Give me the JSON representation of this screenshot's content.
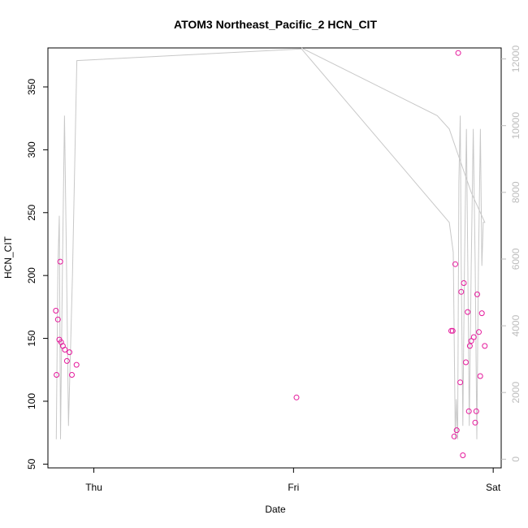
{
  "chart_data": {
    "type": "scatter",
    "title": "ATOM3 Northeast_Pacific_2 HCN_CIT",
    "xlabel": "Date",
    "ylabel": "HCN_CIT",
    "x_tick_labels": [
      "Thu",
      "Fri",
      "Sat"
    ],
    "x_ticks_days": [
      1.0,
      2.0,
      3.0
    ],
    "xlim_days": [
      0.77,
      3.04
    ],
    "ylim": [
      47,
      381
    ],
    "y_ticks": [
      50,
      100,
      150,
      200,
      250,
      300,
      350
    ],
    "y2lim": [
      -260,
      12330
    ],
    "y2_ticks": [
      0,
      2000,
      4000,
      6000,
      8000,
      10000,
      12000
    ],
    "grid": false,
    "colors": {
      "points": "#e5179b",
      "altitude_line": "#c8c8c8",
      "right_axis": "#bdbdbd"
    },
    "series": [
      {
        "marker": "open-circle",
        "axis": "left",
        "points": [
          {
            "x": 0.81,
            "y": 172
          },
          {
            "x": 0.813,
            "y": 121
          },
          {
            "x": 0.82,
            "y": 165
          },
          {
            "x": 0.827,
            "y": 149
          },
          {
            "x": 0.832,
            "y": 211
          },
          {
            "x": 0.836,
            "y": 147
          },
          {
            "x": 0.845,
            "y": 144
          },
          {
            "x": 0.855,
            "y": 141
          },
          {
            "x": 0.865,
            "y": 132
          },
          {
            "x": 0.878,
            "y": 139
          },
          {
            "x": 0.89,
            "y": 121
          },
          {
            "x": 0.913,
            "y": 129
          },
          {
            "x": 2.015,
            "y": 103
          },
          {
            "x": 2.79,
            "y": 156
          },
          {
            "x": 2.797,
            "y": 156
          },
          {
            "x": 2.805,
            "y": 72
          },
          {
            "x": 2.81,
            "y": 209
          },
          {
            "x": 2.817,
            "y": 77
          },
          {
            "x": 2.825,
            "y": 377
          },
          {
            "x": 2.835,
            "y": 115
          },
          {
            "x": 2.84,
            "y": 187
          },
          {
            "x": 2.848,
            "y": 57
          },
          {
            "x": 2.853,
            "y": 194
          },
          {
            "x": 2.863,
            "y": 131
          },
          {
            "x": 2.872,
            "y": 171
          },
          {
            "x": 2.878,
            "y": 92
          },
          {
            "x": 2.883,
            "y": 144
          },
          {
            "x": 2.89,
            "y": 148
          },
          {
            "x": 2.903,
            "y": 151
          },
          {
            "x": 2.91,
            "y": 83
          },
          {
            "x": 2.915,
            "y": 92
          },
          {
            "x": 2.92,
            "y": 185
          },
          {
            "x": 2.928,
            "y": 155
          },
          {
            "x": 2.935,
            "y": 120
          },
          {
            "x": 2.943,
            "y": 170
          },
          {
            "x": 2.958,
            "y": 144
          }
        ]
      },
      {
        "marker": "line",
        "axis": "right",
        "points": [
          {
            "x": 0.812,
            "y": 600
          },
          {
            "x": 0.82,
            "y": 5800
          },
          {
            "x": 0.827,
            "y": 7300
          },
          {
            "x": 0.833,
            "y": 600
          },
          {
            "x": 0.843,
            "y": 5800
          },
          {
            "x": 0.853,
            "y": 10300
          },
          {
            "x": 0.863,
            "y": 5800
          },
          {
            "x": 0.873,
            "y": 1000
          },
          {
            "x": 0.893,
            "y": 5500
          },
          {
            "x": 0.915,
            "y": 11950
          },
          {
            "x": 2.04,
            "y": 12300
          },
          {
            "x": 2.78,
            "y": 7100
          },
          {
            "x": 2.8,
            "y": 6200
          },
          {
            "x": 2.81,
            "y": 600
          },
          {
            "x": 2.815,
            "y": 1800
          },
          {
            "x": 2.822,
            "y": 600
          },
          {
            "x": 2.828,
            "y": 8300
          },
          {
            "x": 2.835,
            "y": 10300
          },
          {
            "x": 2.84,
            "y": 5800
          },
          {
            "x": 2.848,
            "y": 1000
          },
          {
            "x": 2.856,
            "y": 5800
          },
          {
            "x": 2.866,
            "y": 9900
          },
          {
            "x": 2.873,
            "y": 5800
          },
          {
            "x": 2.88,
            "y": 1000
          },
          {
            "x": 2.89,
            "y": 5800
          },
          {
            "x": 2.9,
            "y": 9900
          },
          {
            "x": 2.91,
            "y": 5800
          },
          {
            "x": 2.918,
            "y": 600
          },
          {
            "x": 2.926,
            "y": 5800
          },
          {
            "x": 2.936,
            "y": 9900
          },
          {
            "x": 2.943,
            "y": 5800
          },
          {
            "x": 2.95,
            "y": 7100
          },
          {
            "x": 2.958,
            "y": 7100
          },
          {
            "x": 2.89,
            "y": 8000
          },
          {
            "x": 2.82,
            "y": 9200
          },
          {
            "x": 2.78,
            "y": 9900
          },
          {
            "x": 2.72,
            "y": 10300
          },
          {
            "x": 2.04,
            "y": 12330
          }
        ]
      }
    ]
  }
}
